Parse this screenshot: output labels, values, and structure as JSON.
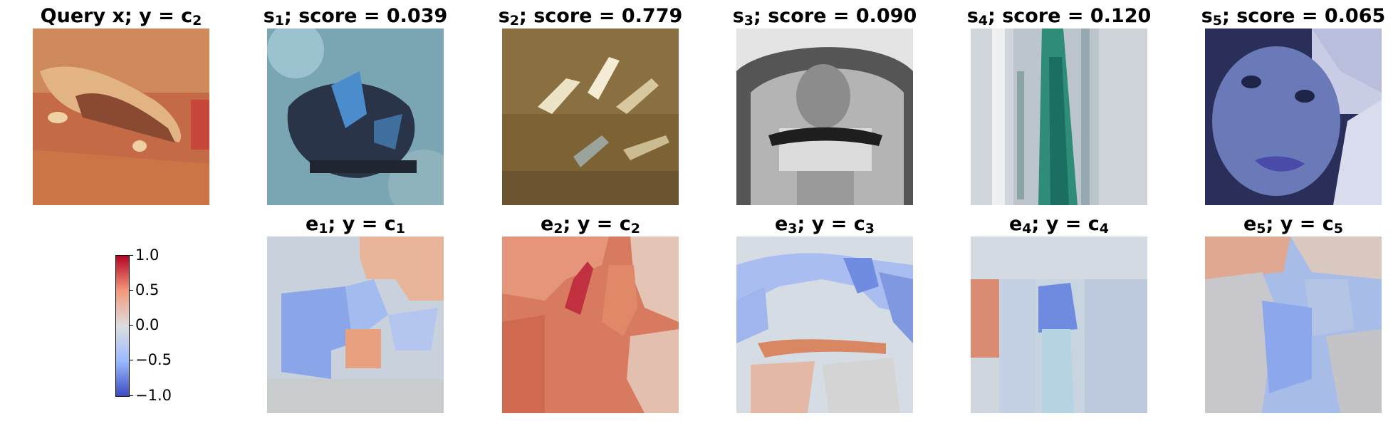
{
  "top_row": [
    {
      "var": "Query x; y = c",
      "sub": "2",
      "suffix": ""
    },
    {
      "var": "s",
      "sub": "1",
      "suffix": "; score = 0.039"
    },
    {
      "var": "s",
      "sub": "2",
      "suffix": "; score = 0.779"
    },
    {
      "var": "s",
      "sub": "3",
      "suffix": "; score = 0.090"
    },
    {
      "var": "s",
      "sub": "4",
      "suffix": "; score = 0.120"
    },
    {
      "var": "s",
      "sub": "5",
      "suffix": "; score = 0.065"
    }
  ],
  "bottom_row": [
    {
      "var": "e",
      "sub": "1",
      "mid": "; y = c",
      "sub2": "1"
    },
    {
      "var": "e",
      "sub": "2",
      "mid": "; y = c",
      "sub2": "2"
    },
    {
      "var": "e",
      "sub": "3",
      "mid": "; y = c",
      "sub2": "3"
    },
    {
      "var": "e",
      "sub": "4",
      "mid": "; y = c",
      "sub2": "4"
    },
    {
      "var": "e",
      "sub": "5",
      "mid": "; y = c",
      "sub2": "5"
    }
  ],
  "colorbar": {
    "ticks": [
      "1.0",
      "0.5",
      "0.0",
      "−0.5",
      "−1.0"
    ],
    "colormap": [
      "#b40426",
      "#f7b89c",
      "#dddddd",
      "#9abbff",
      "#3b4cc0"
    ]
  }
}
